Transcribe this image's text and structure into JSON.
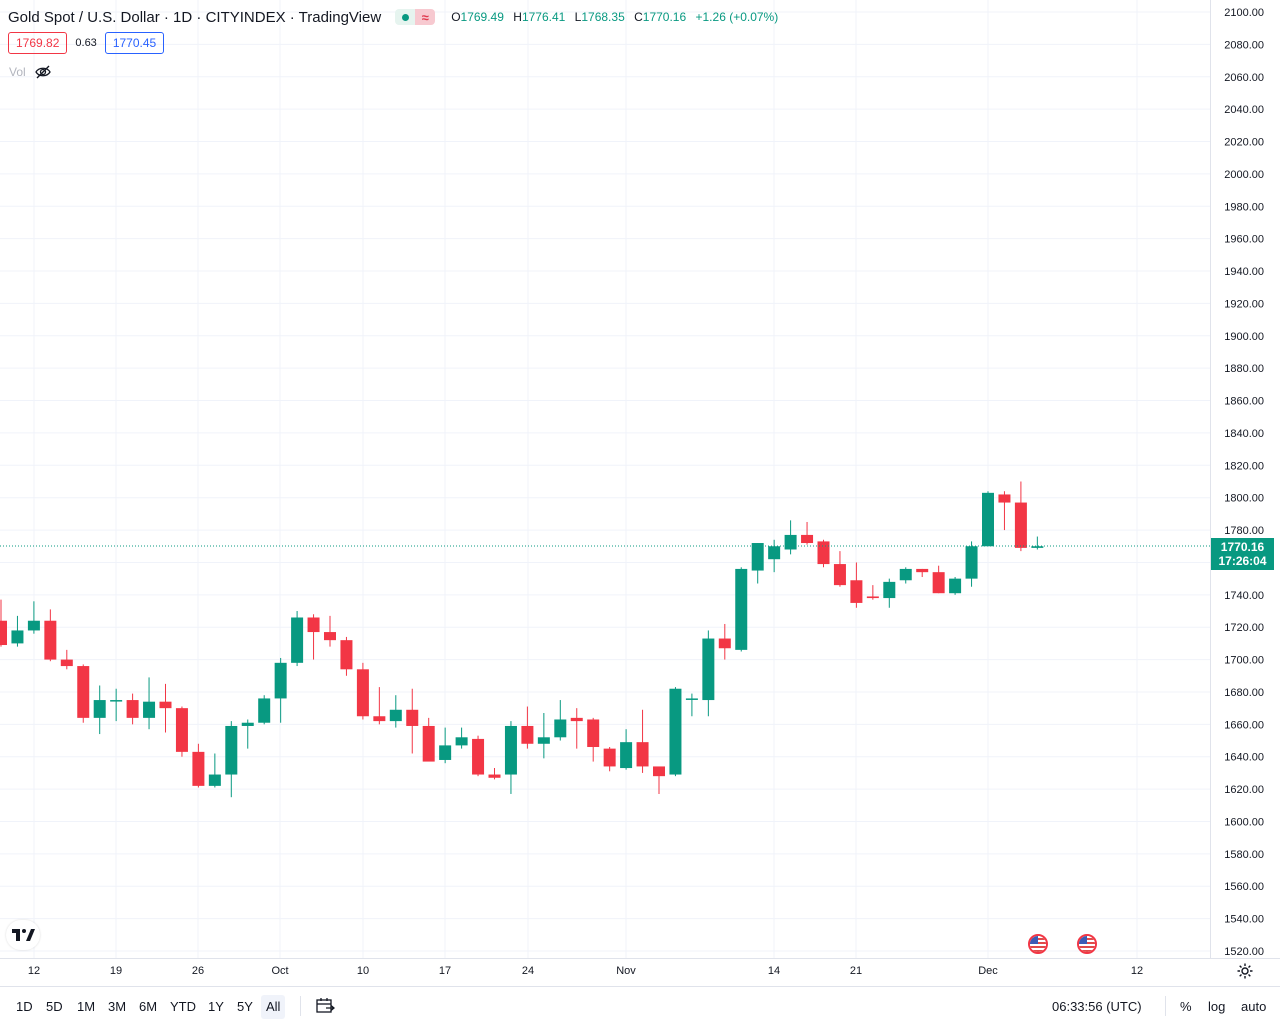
{
  "header": {
    "title": "Gold Spot / U.S. Dollar · 1D · CITYINDEX · TradingView",
    "status_icons": [
      "market-open-dot-icon",
      "delayed-data-wave-icon"
    ],
    "ohlc": {
      "o_key": "O",
      "o_val": "1769.49",
      "h_key": "H",
      "h_val": "1776.41",
      "l_key": "L",
      "l_val": "1768.35",
      "c_key": "C",
      "c_val": "1770.16",
      "change": "+1.26 (+0.07%)"
    }
  },
  "trade": {
    "sell": "1769.82",
    "spread": "0.63",
    "buy": "1770.45"
  },
  "volume": {
    "label": "Vol"
  },
  "last_price": {
    "price": "1770.16",
    "countdown": "17:26:04"
  },
  "colors": {
    "up": "#089981",
    "down": "#f23645",
    "grid": "#f0f3fa",
    "text": "#131722"
  },
  "bottom": {
    "timeframes": [
      "1D",
      "5D",
      "1M",
      "3M",
      "6M",
      "YTD",
      "1Y",
      "5Y",
      "All"
    ],
    "active_timeframe": "All",
    "clock": "06:33:56 (UTC)",
    "percent_label": "%",
    "log_label": "log",
    "auto_label": "auto"
  },
  "chart_data": {
    "type": "candlestick",
    "y_axis": {
      "min": 1520,
      "max": 2100,
      "step": 20,
      "ticks": [
        "2100.00",
        "2080.00",
        "2060.00",
        "2040.00",
        "2020.00",
        "2000.00",
        "1980.00",
        "1960.00",
        "1940.00",
        "1920.00",
        "1900.00",
        "1880.00",
        "1860.00",
        "1840.00",
        "1820.00",
        "1800.00",
        "1780.00",
        "1760.00",
        "1740.00",
        "1720.00",
        "1700.00",
        "1680.00",
        "1660.00",
        "1640.00",
        "1620.00",
        "1600.00",
        "1580.00",
        "1560.00",
        "1540.00",
        "1520.00"
      ]
    },
    "x_axis": {
      "labels": [
        "12",
        "19",
        "26",
        "Oct",
        "10",
        "17",
        "24",
        "Nov",
        "14",
        "21",
        "Dec",
        "12"
      ]
    },
    "candles": [
      {
        "o": 1724,
        "h": 1737,
        "l": 1708,
        "c": 1709
      },
      {
        "o": 1710,
        "h": 1727,
        "l": 1708,
        "c": 1718
      },
      {
        "o": 1718,
        "h": 1736,
        "l": 1716,
        "c": 1724
      },
      {
        "o": 1724,
        "h": 1731,
        "l": 1699,
        "c": 1700
      },
      {
        "o": 1700,
        "h": 1706,
        "l": 1694,
        "c": 1696
      },
      {
        "o": 1696,
        "h": 1697,
        "l": 1661,
        "c": 1664
      },
      {
        "o": 1664,
        "h": 1684,
        "l": 1654,
        "c": 1675
      },
      {
        "o": 1675,
        "h": 1682,
        "l": 1662,
        "c": 1675
      },
      {
        "o": 1675,
        "h": 1679,
        "l": 1660,
        "c": 1664
      },
      {
        "o": 1664,
        "h": 1689,
        "l": 1657,
        "c": 1674
      },
      {
        "o": 1674,
        "h": 1685,
        "l": 1655,
        "c": 1670
      },
      {
        "o": 1670,
        "h": 1671,
        "l": 1640,
        "c": 1643
      },
      {
        "o": 1643,
        "h": 1648,
        "l": 1621,
        "c": 1622
      },
      {
        "o": 1622,
        "h": 1642,
        "l": 1621,
        "c": 1629
      },
      {
        "o": 1629,
        "h": 1662,
        "l": 1615,
        "c": 1659
      },
      {
        "o": 1659,
        "h": 1663,
        "l": 1645,
        "c": 1661
      },
      {
        "o": 1661,
        "h": 1678,
        "l": 1660,
        "c": 1676
      },
      {
        "o": 1676,
        "h": 1701,
        "l": 1661,
        "c": 1698
      },
      {
        "o": 1698,
        "h": 1730,
        "l": 1696,
        "c": 1726
      },
      {
        "o": 1726,
        "h": 1728,
        "l": 1700,
        "c": 1717
      },
      {
        "o": 1717,
        "h": 1727,
        "l": 1708,
        "c": 1712
      },
      {
        "o": 1712,
        "h": 1714,
        "l": 1690,
        "c": 1694
      },
      {
        "o": 1694,
        "h": 1698,
        "l": 1663,
        "c": 1665
      },
      {
        "o": 1665,
        "h": 1683,
        "l": 1660,
        "c": 1662
      },
      {
        "o": 1662,
        "h": 1678,
        "l": 1658,
        "c": 1669
      },
      {
        "o": 1669,
        "h": 1682,
        "l": 1642,
        "c": 1659
      },
      {
        "o": 1659,
        "h": 1664,
        "l": 1640,
        "c": 1637
      },
      {
        "o": 1638,
        "h": 1658,
        "l": 1636,
        "c": 1647
      },
      {
        "o": 1647,
        "h": 1658,
        "l": 1645,
        "c": 1652
      },
      {
        "o": 1651,
        "h": 1653,
        "l": 1628,
        "c": 1629
      },
      {
        "o": 1629,
        "h": 1633,
        "l": 1626,
        "c": 1627
      },
      {
        "o": 1629,
        "h": 1662,
        "l": 1617,
        "c": 1659
      },
      {
        "o": 1659,
        "h": 1671,
        "l": 1645,
        "c": 1648
      },
      {
        "o": 1648,
        "h": 1667,
        "l": 1639,
        "c": 1652
      },
      {
        "o": 1652,
        "h": 1675,
        "l": 1650,
        "c": 1663
      },
      {
        "o": 1664,
        "h": 1670,
        "l": 1645,
        "c": 1662
      },
      {
        "o": 1663,
        "h": 1664,
        "l": 1637,
        "c": 1646
      },
      {
        "o": 1645,
        "h": 1646,
        "l": 1631,
        "c": 1634
      },
      {
        "o": 1633,
        "h": 1657,
        "l": 1632,
        "c": 1649
      },
      {
        "o": 1649,
        "h": 1669,
        "l": 1630,
        "c": 1634
      },
      {
        "o": 1634,
        "h": 1634,
        "l": 1617,
        "c": 1628
      },
      {
        "o": 1629,
        "h": 1683,
        "l": 1628,
        "c": 1682
      },
      {
        "o": 1676,
        "h": 1679,
        "l": 1665,
        "c": 1676
      },
      {
        "o": 1675,
        "h": 1718,
        "l": 1665,
        "c": 1713
      },
      {
        "o": 1713,
        "h": 1722,
        "l": 1700,
        "c": 1707
      },
      {
        "o": 1706,
        "h": 1757,
        "l": 1705,
        "c": 1756
      },
      {
        "o": 1755,
        "h": 1772,
        "l": 1747,
        "c": 1772
      },
      {
        "o": 1762,
        "h": 1774,
        "l": 1754,
        "c": 1770
      },
      {
        "o": 1768,
        "h": 1786,
        "l": 1765,
        "c": 1777
      },
      {
        "o": 1777,
        "h": 1785,
        "l": 1771,
        "c": 1772
      },
      {
        "o": 1773,
        "h": 1774,
        "l": 1757,
        "c": 1759
      },
      {
        "o": 1759,
        "h": 1767,
        "l": 1745,
        "c": 1746
      },
      {
        "o": 1749,
        "h": 1760,
        "l": 1732,
        "c": 1735
      },
      {
        "o": 1739,
        "h": 1746,
        "l": 1737,
        "c": 1738
      },
      {
        "o": 1738,
        "h": 1750,
        "l": 1732,
        "c": 1748
      },
      {
        "o": 1749,
        "h": 1757,
        "l": 1747,
        "c": 1756
      },
      {
        "o": 1756,
        "h": 1756,
        "l": 1751,
        "c": 1754
      },
      {
        "o": 1754,
        "h": 1758,
        "l": 1741,
        "c": 1741
      },
      {
        "o": 1741,
        "h": 1751,
        "l": 1740,
        "c": 1750
      },
      {
        "o": 1750,
        "h": 1773,
        "l": 1745,
        "c": 1770
      },
      {
        "o": 1770,
        "h": 1804,
        "l": 1770,
        "c": 1803
      },
      {
        "o": 1802,
        "h": 1804,
        "l": 1780,
        "c": 1797
      },
      {
        "o": 1797,
        "h": 1810,
        "l": 1767,
        "c": 1769
      },
      {
        "o": 1769,
        "h": 1776,
        "l": 1768,
        "c": 1770
      }
    ]
  }
}
